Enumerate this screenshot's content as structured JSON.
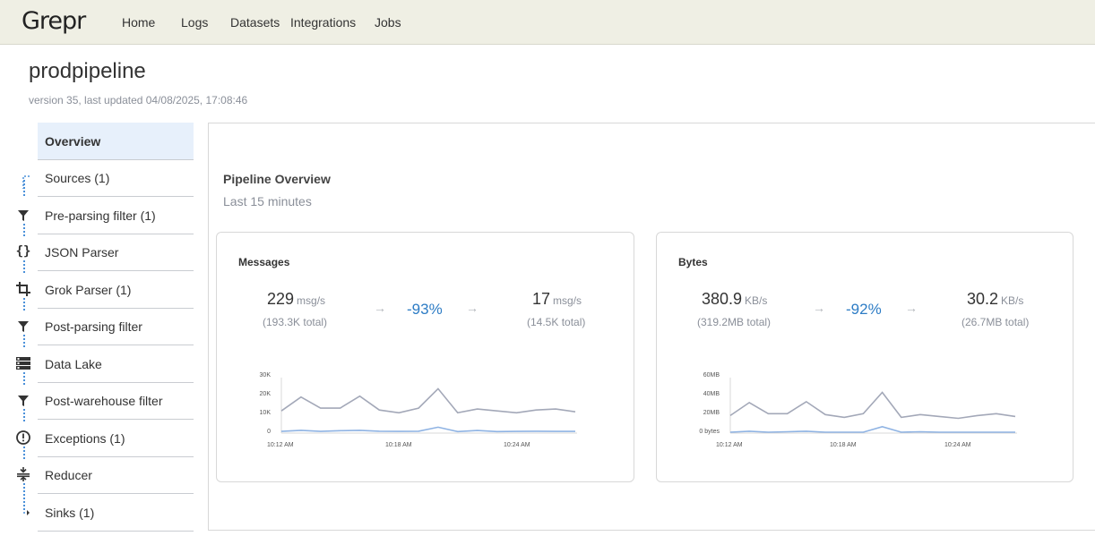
{
  "header": {
    "logo": "Grepr",
    "nav": [
      "Home",
      "Logs",
      "Datasets",
      "Integrations",
      "Jobs"
    ]
  },
  "pipeline": {
    "name": "prodpipeline",
    "version_text": "version 35, last updated 04/08/2025, 17:08:46"
  },
  "sidebar": {
    "items": [
      {
        "label": "Overview",
        "icon": "none"
      },
      {
        "label": "Sources (1)",
        "icon": "flow-start-icon"
      },
      {
        "label": "Pre-parsing filter (1)",
        "icon": "filter-icon"
      },
      {
        "label": "JSON Parser",
        "icon": "braces-icon"
      },
      {
        "label": "Grok Parser (1)",
        "icon": "crop-icon"
      },
      {
        "label": "Post-parsing filter",
        "icon": "filter-icon"
      },
      {
        "label": "Data Lake",
        "icon": "storage-icon"
      },
      {
        "label": "Post-warehouse filter",
        "icon": "filter-icon"
      },
      {
        "label": "Exceptions (1)",
        "icon": "alert-circle-icon"
      },
      {
        "label": "Reducer",
        "icon": "compress-icon"
      },
      {
        "label": "Sinks (1)",
        "icon": "flow-end-icon"
      }
    ]
  },
  "overview": {
    "title": "Pipeline Overview",
    "subtitle": "Last 15 minutes"
  },
  "messages": {
    "title": "Messages",
    "in_value": "229",
    "in_unit": "msg/s",
    "in_total": "(193.3K total)",
    "arrow": "→",
    "pct": "-93%",
    "out_value": "17",
    "out_unit": "msg/s",
    "out_total": "(14.5K total)"
  },
  "bytes": {
    "title": "Bytes",
    "in_value": "380.9",
    "in_unit": "KB/s",
    "in_total": "(319.2MB total)",
    "arrow": "→",
    "pct": "-92%",
    "out_value": "30.2",
    "out_unit": "KB/s",
    "out_total": "(26.7MB total)"
  },
  "chart_data": [
    {
      "type": "line",
      "y_ticks": [
        "30K",
        "20K",
        "10K",
        "0"
      ],
      "x_ticks": [
        "10:12 AM",
        "10:18 AM",
        "10:24 AM"
      ],
      "ylim": [
        0,
        30000
      ],
      "series": [
        {
          "values": [
            12000,
            19500,
            13500,
            13500,
            20000,
            12500,
            11000,
            13500,
            24000,
            11000,
            13000,
            12000,
            11000,
            12500,
            13000,
            11500
          ],
          "color": "#a3a8b8"
        },
        {
          "values": [
            900,
            1500,
            900,
            1300,
            1500,
            1000,
            900,
            1000,
            3200,
            800,
            1400,
            800,
            900,
            1000,
            900,
            900
          ],
          "color": "#8fb3e3"
        }
      ]
    },
    {
      "type": "line",
      "y_ticks": [
        "60MB",
        "40MB",
        "20MB",
        "0 bytes"
      ],
      "x_ticks": [
        "10:12 AM",
        "10:18 AM",
        "10:24 AM"
      ],
      "ylim": [
        0,
        60
      ],
      "series": [
        {
          "values": [
            19,
            33,
            21,
            21,
            34,
            20,
            17,
            21,
            44,
            17,
            20,
            18,
            16,
            19,
            21,
            18
          ],
          "color": "#a3a8b8"
        },
        {
          "values": [
            1,
            2,
            1,
            1.5,
            2,
            1,
            1,
            1,
            7,
            1,
            1.5,
            1,
            1,
            1,
            1,
            1
          ],
          "color": "#8fb3e3"
        }
      ]
    }
  ]
}
